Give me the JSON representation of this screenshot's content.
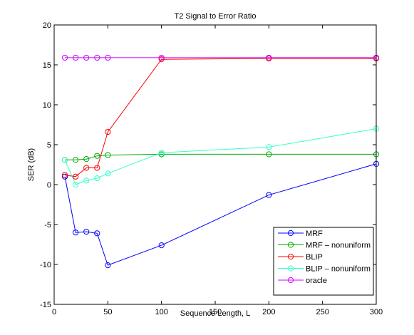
{
  "chart_data": {
    "type": "line",
    "title": "T2 Signal to Error Ratio",
    "xlabel": "Sequence Length, L",
    "ylabel": "SER (dB)",
    "xlim": [
      0,
      300
    ],
    "ylim": [
      -15,
      20
    ],
    "x_ticks": [
      "0",
      "50",
      "100",
      "150",
      "200",
      "250",
      "300"
    ],
    "y_ticks": [
      "-15",
      "-10",
      "-5",
      "0",
      "5",
      "10",
      "15",
      "20"
    ],
    "grid": false,
    "legend_position": "bottom-right",
    "marker": "circle",
    "series": [
      {
        "name": "MRF",
        "color": "#0000ff",
        "x": [
          10,
          20,
          30,
          40,
          50,
          100,
          200,
          300
        ],
        "y": [
          1.0,
          -6.0,
          -5.9,
          -6.1,
          -10.1,
          -7.6,
          -1.3,
          2.6
        ]
      },
      {
        "name": "MRF – nonuniform",
        "color": "#00aa00",
        "x": [
          10,
          20,
          30,
          40,
          50,
          100,
          200,
          300
        ],
        "y": [
          3.1,
          3.1,
          3.2,
          3.6,
          3.7,
          3.8,
          3.8,
          3.8
        ]
      },
      {
        "name": "BLIP",
        "color": "#ff0000",
        "x": [
          10,
          20,
          30,
          40,
          50,
          100,
          200,
          300
        ],
        "y": [
          1.2,
          1.0,
          2.1,
          2.1,
          6.6,
          15.7,
          15.8,
          15.8
        ]
      },
      {
        "name": "BLIP – nonuniform",
        "color": "#33ffcc",
        "x": [
          10,
          20,
          30,
          40,
          50,
          100,
          200,
          300
        ],
        "y": [
          3.1,
          0.0,
          0.5,
          0.8,
          1.4,
          4.0,
          4.7,
          7.0
        ]
      },
      {
        "name": "oracle",
        "color": "#cc00ff",
        "x": [
          10,
          20,
          30,
          40,
          50,
          100,
          200,
          300
        ],
        "y": [
          15.9,
          15.9,
          15.9,
          15.9,
          15.9,
          15.9,
          15.9,
          15.9
        ]
      }
    ]
  }
}
